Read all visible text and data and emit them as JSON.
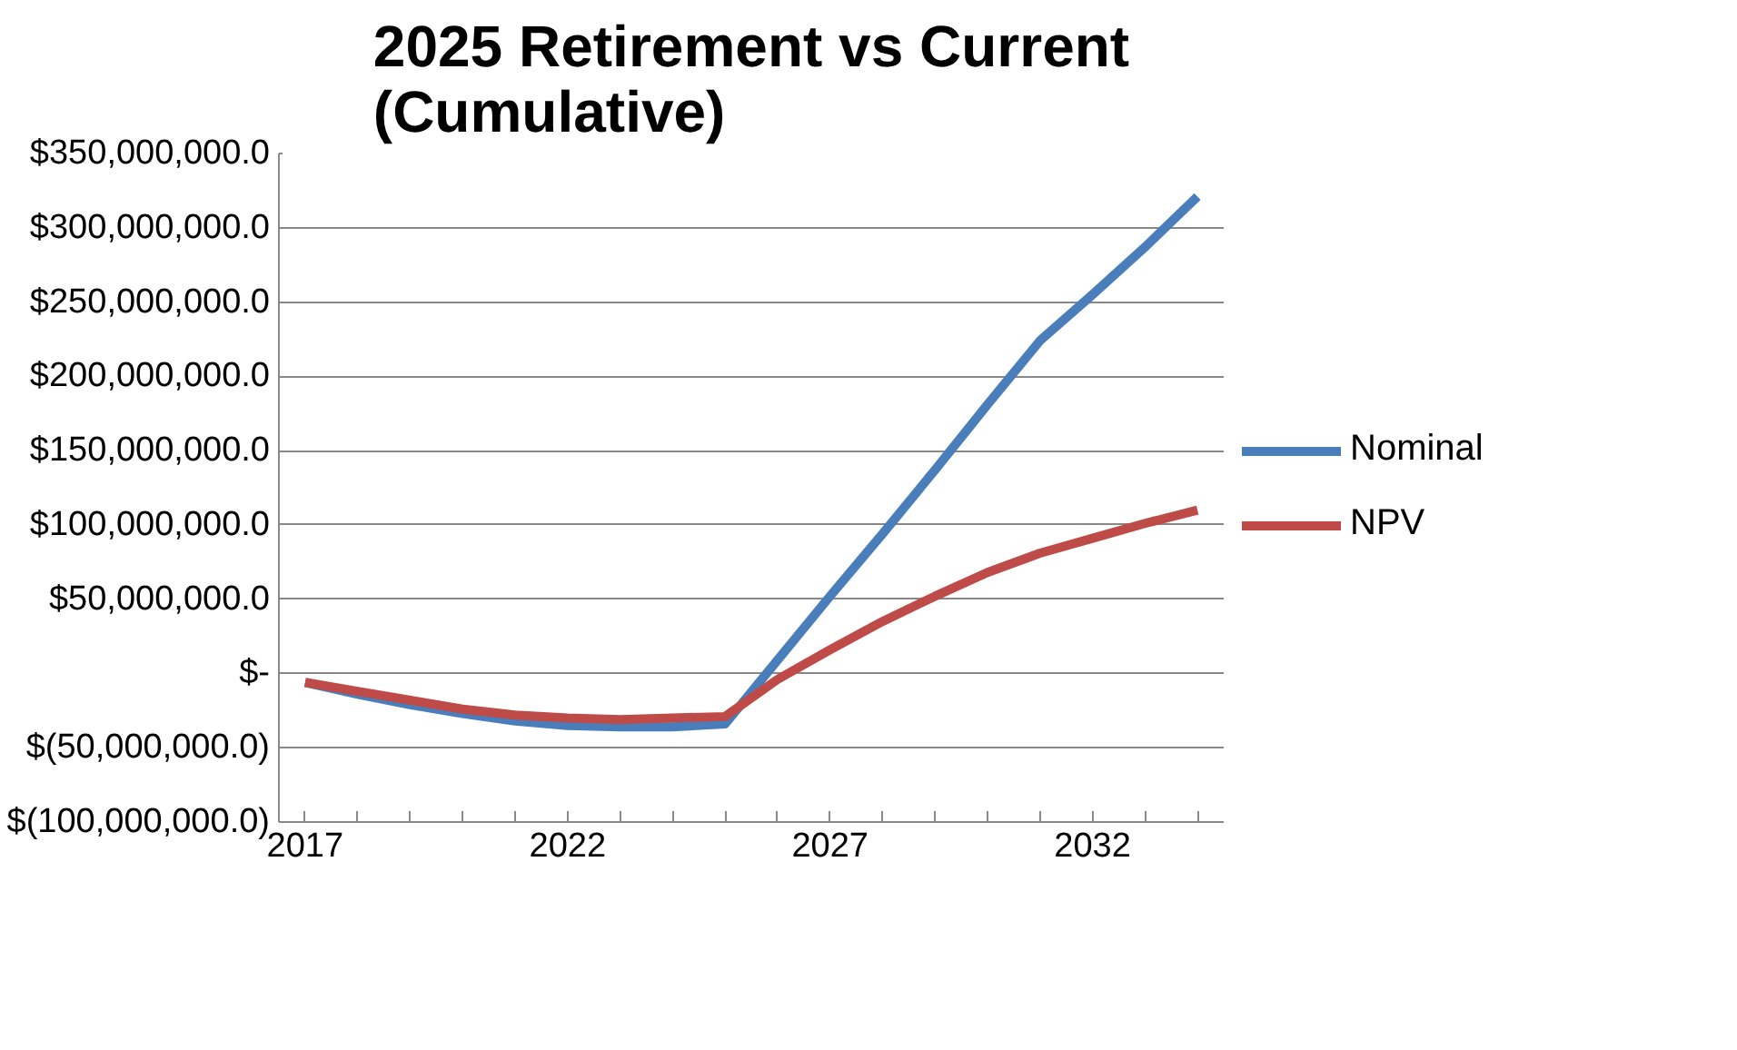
{
  "chart_data": {
    "type": "line",
    "title": "2025 Retirement vs Current (Cumulative)",
    "x": [
      2017,
      2018,
      2019,
      2020,
      2021,
      2022,
      2023,
      2024,
      2025,
      2026,
      2027,
      2028,
      2029,
      2030,
      2031,
      2032,
      2033,
      2034
    ],
    "series": [
      {
        "name": "Nominal",
        "color": "#4a7ebb",
        "values": [
          -6000000,
          -14000000,
          -21000000,
          -27000000,
          -32000000,
          -35000000,
          -36000000,
          -36000000,
          -34000000,
          9000000,
          52000000,
          94000000,
          137000000,
          181000000,
          224000000,
          255000000,
          287000000,
          321000000
        ]
      },
      {
        "name": "NPV",
        "color": "#be4b48",
        "values": [
          -6000000,
          -12000000,
          -18000000,
          -24000000,
          -28000000,
          -30000000,
          -31000000,
          -30000000,
          -29000000,
          -4000000,
          16000000,
          35000000,
          52000000,
          68000000,
          81000000,
          91000000,
          101000000,
          110000000
        ]
      }
    ],
    "xlim": [
      2016.5,
      2034.5
    ],
    "xticks": [
      2017,
      2022,
      2027,
      2032
    ],
    "ylim": [
      -100000000,
      350000000
    ],
    "yticks": [
      {
        "value": -100000000,
        "label": "$(100,000,000.0)"
      },
      {
        "value": -50000000,
        "label": "$(50,000,000.0)"
      },
      {
        "value": 0,
        "label": "$-"
      },
      {
        "value": 50000000,
        "label": "$50,000,000.0"
      },
      {
        "value": 100000000,
        "label": "$100,000,000.0"
      },
      {
        "value": 150000000,
        "label": "$150,000,000.0"
      },
      {
        "value": 200000000,
        "label": "$200,000,000.0"
      },
      {
        "value": 250000000,
        "label": "$250,000,000.0"
      },
      {
        "value": 300000000,
        "label": "$300,000,000.0"
      },
      {
        "value": 350000000,
        "label": "$350,000,000.0"
      }
    ],
    "grid": "y",
    "legend": "right",
    "marker": "none",
    "line_style": "solid"
  }
}
